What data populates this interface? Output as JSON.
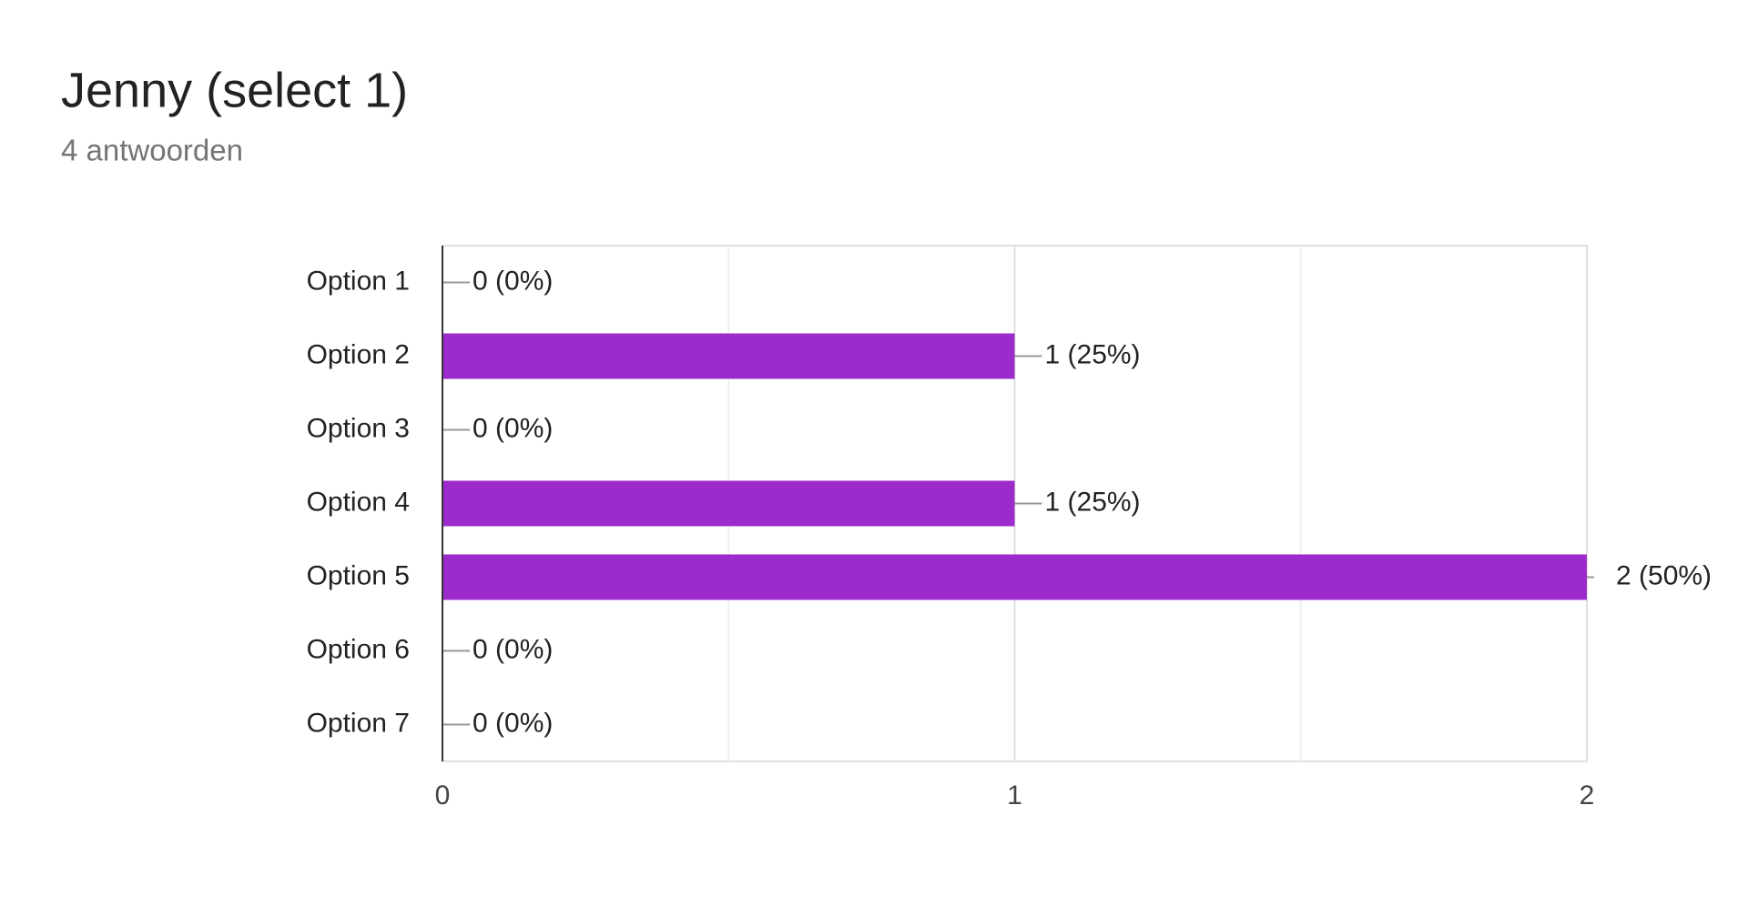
{
  "chart_data": {
    "type": "bar",
    "orientation": "horizontal",
    "title": "Jenny (select 1)",
    "subtitle": "4 antwoorden",
    "categories": [
      "Option 1",
      "Option 2",
      "Option 3",
      "Option 4",
      "Option 5",
      "Option 6",
      "Option 7"
    ],
    "values": [
      0,
      1,
      0,
      1,
      2,
      0,
      0
    ],
    "value_labels": [
      "0 (0%)",
      "1 (25%)",
      "0 (0%)",
      "1 (25%)",
      "2 (50%)",
      "0 (0%)",
      "0 (0%)"
    ],
    "color": "#9c2bcb",
    "xlim": [
      0,
      2
    ],
    "xticks": [
      0,
      1,
      2
    ],
    "minor_xticks": [
      0.5,
      1.5
    ],
    "grid": true
  }
}
